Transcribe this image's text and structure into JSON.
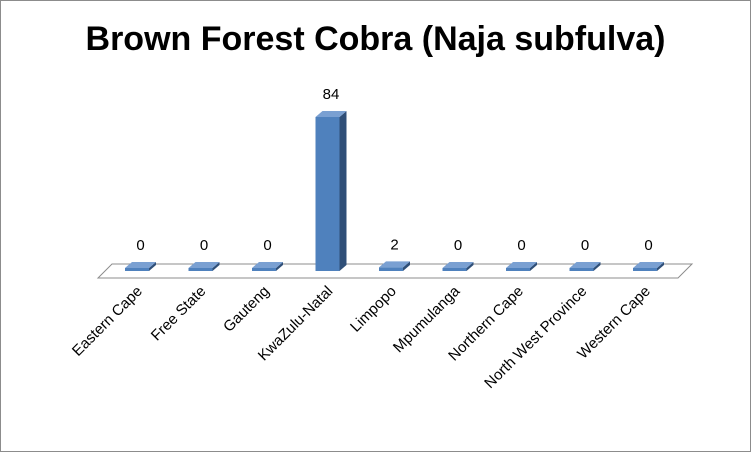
{
  "chart_data": {
    "type": "bar",
    "title": "Brown Forest Cobra (Naja subfulva)",
    "categories": [
      "Eastern Cape",
      "Free State",
      "Gauteng",
      "KwaZulu-Natal",
      "Limpopo",
      "Mpumulanga",
      "Northern Cape",
      "North West Province",
      "Western Cape"
    ],
    "values": [
      0,
      0,
      0,
      84,
      2,
      0,
      0,
      0,
      0
    ],
    "ylim": [
      0,
      84
    ],
    "grid": false,
    "legend": "none",
    "style": "3d-column",
    "colors": {
      "bar_front": "#4f81bd",
      "bar_side": "#2f4f78",
      "bar_top": "#7aa0d2"
    }
  }
}
